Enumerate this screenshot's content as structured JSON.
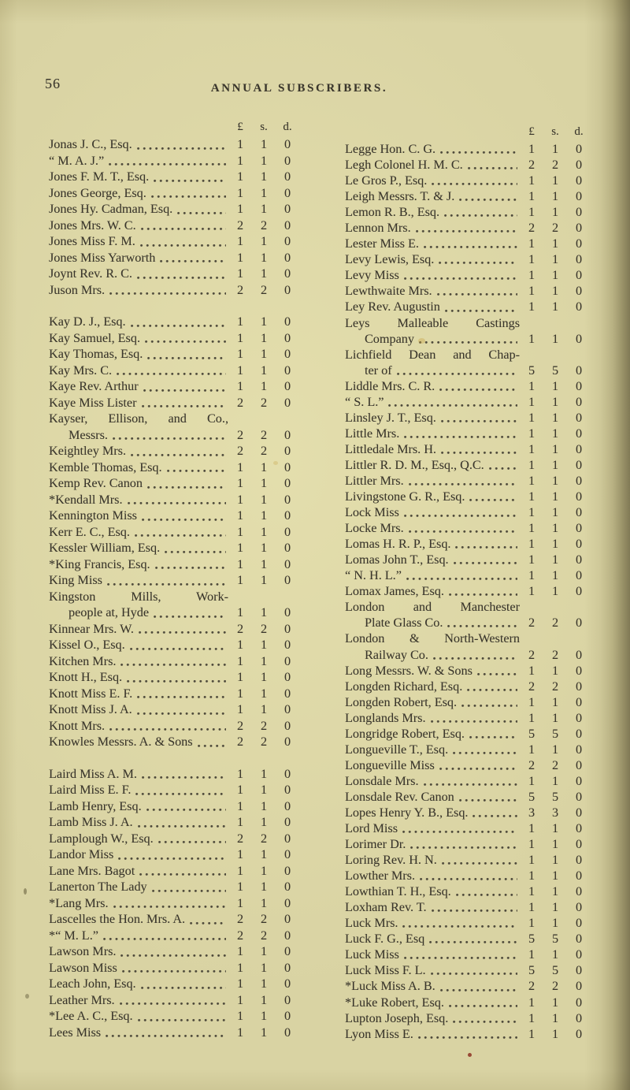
{
  "page": {
    "number": "56",
    "title": "ANNUAL SUBSCRIBERS.",
    "currency_header": {
      "pounds": "£",
      "shillings": "s.",
      "pence": "d."
    }
  },
  "columns": [
    {
      "side": "left",
      "groups": [
        {
          "entries": [
            {
              "name": "Jonas J. C., Esq.",
              "v": [
                "1",
                "1",
                "0"
              ]
            },
            {
              "name": "“ M. A. J.”",
              "v": [
                "1",
                "1",
                "0"
              ]
            },
            {
              "name": "Jones F. M. T., Esq.",
              "v": [
                "1",
                "1",
                "0"
              ]
            },
            {
              "name": "Jones George, Esq.",
              "v": [
                "1",
                "1",
                "0"
              ]
            },
            {
              "name": "Jones Hy. Cadman, Esq.",
              "v": [
                "1",
                "1",
                "0"
              ]
            },
            {
              "name": "Jones Mrs. W. C.",
              "v": [
                "2",
                "2",
                "0"
              ]
            },
            {
              "name": "Jones Miss F. M.",
              "v": [
                "1",
                "1",
                "0"
              ]
            },
            {
              "name": "Jones Miss Yarworth",
              "v": [
                "1",
                "1",
                "0"
              ]
            },
            {
              "name": "Joynt Rev. R. C.",
              "v": [
                "1",
                "1",
                "0"
              ]
            },
            {
              "name": "Juson Mrs.",
              "v": [
                "2",
                "2",
                "0"
              ]
            }
          ]
        },
        {
          "entries": [
            {
              "name": "Kay D. J., Esq.",
              "v": [
                "1",
                "1",
                "0"
              ]
            },
            {
              "name": "Kay Samuel, Esq.",
              "v": [
                "1",
                "1",
                "0"
              ]
            },
            {
              "name": "Kay Thomas, Esq.",
              "v": [
                "1",
                "1",
                "0"
              ]
            },
            {
              "name": "Kay Mrs. C.",
              "v": [
                "1",
                "1",
                "0"
              ]
            },
            {
              "name": "Kaye Rev. Arthur",
              "v": [
                "1",
                "1",
                "0"
              ]
            },
            {
              "name": "Kaye Miss Lister",
              "v": [
                "2",
                "2",
                "0"
              ]
            },
            {
              "line1": "Kayser, Ellison, and Co.,",
              "line2": "Messrs.",
              "v": [
                "2",
                "2",
                "0"
              ]
            },
            {
              "name": "Keightley Mrs.",
              "v": [
                "2",
                "2",
                "0"
              ]
            },
            {
              "name": "Kemble Thomas, Esq.",
              "v": [
                "1",
                "1",
                "0"
              ]
            },
            {
              "name": "Kemp Rev. Canon",
              "v": [
                "1",
                "1",
                "0"
              ]
            },
            {
              "name": "*Kendall Mrs.",
              "v": [
                "1",
                "1",
                "0"
              ]
            },
            {
              "name": "Kennington Miss",
              "v": [
                "1",
                "1",
                "0"
              ]
            },
            {
              "name": "Kerr E. C., Esq.",
              "v": [
                "1",
                "1",
                "0"
              ]
            },
            {
              "name": "Kessler William, Esq.",
              "v": [
                "1",
                "1",
                "0"
              ]
            },
            {
              "name": "*King Francis, Esq.",
              "v": [
                "1",
                "1",
                "0"
              ]
            },
            {
              "name": "King Miss",
              "v": [
                "1",
                "1",
                "0"
              ]
            },
            {
              "line1": "Kingston Mills, Work-",
              "line2": "people at, Hyde",
              "v": [
                "1",
                "1",
                "0"
              ]
            },
            {
              "name": "Kinnear Mrs. W.",
              "v": [
                "2",
                "2",
                "0"
              ]
            },
            {
              "name": "Kissel O., Esq.",
              "v": [
                "1",
                "1",
                "0"
              ]
            },
            {
              "name": "Kitchen Mrs.",
              "v": [
                "1",
                "1",
                "0"
              ]
            },
            {
              "name": "Knott H., Esq.",
              "v": [
                "1",
                "1",
                "0"
              ]
            },
            {
              "name": "Knott Miss E. F.",
              "v": [
                "1",
                "1",
                "0"
              ]
            },
            {
              "name": "Knott Miss J. A.",
              "v": [
                "1",
                "1",
                "0"
              ]
            },
            {
              "name": "Knott Mrs.",
              "v": [
                "2",
                "2",
                "0"
              ]
            },
            {
              "name": "Knowles Messrs. A. & Sons",
              "v": [
                "2",
                "2",
                "0"
              ]
            }
          ]
        },
        {
          "entries": [
            {
              "name": "Laird Miss A. M.",
              "v": [
                "1",
                "1",
                "0"
              ]
            },
            {
              "name": "Laird Miss E. F.",
              "v": [
                "1",
                "1",
                "0"
              ]
            },
            {
              "name": "Lamb Henry, Esq.",
              "v": [
                "1",
                "1",
                "0"
              ]
            },
            {
              "name": "Lamb Miss J. A.",
              "v": [
                "1",
                "1",
                "0"
              ]
            },
            {
              "name": "Lamplough W., Esq.",
              "v": [
                "2",
                "2",
                "0"
              ]
            },
            {
              "name": "Landor Miss",
              "v": [
                "1",
                "1",
                "0"
              ]
            },
            {
              "name": "Lane Mrs. Bagot",
              "v": [
                "1",
                "1",
                "0"
              ]
            },
            {
              "name": "Lanerton The Lady",
              "v": [
                "1",
                "1",
                "0"
              ]
            },
            {
              "name": "*Lang Mrs.",
              "v": [
                "1",
                "1",
                "0"
              ]
            },
            {
              "name": "Lascelles the Hon. Mrs. A.",
              "v": [
                "2",
                "2",
                "0"
              ]
            },
            {
              "name": "*“ M. L.”",
              "v": [
                "2",
                "2",
                "0"
              ]
            },
            {
              "name": "Lawson Mrs.",
              "v": [
                "1",
                "1",
                "0"
              ]
            },
            {
              "name": "Lawson Miss",
              "v": [
                "1",
                "1",
                "0"
              ]
            },
            {
              "name": "Leach John, Esq.",
              "v": [
                "1",
                "1",
                "0"
              ]
            },
            {
              "name": "Leather Mrs.",
              "v": [
                "1",
                "1",
                "0"
              ]
            },
            {
              "name": "*Lee A. C., Esq.",
              "v": [
                "1",
                "1",
                "0"
              ]
            },
            {
              "name": "Lees Miss",
              "v": [
                "1",
                "1",
                "0"
              ]
            }
          ]
        }
      ]
    },
    {
      "side": "right",
      "groups": [
        {
          "entries": [
            {
              "name": "Legge Hon. C. G.",
              "v": [
                "1",
                "1",
                "0"
              ]
            },
            {
              "name": "Legh Colonel H. M. C.",
              "v": [
                "2",
                "2",
                "0"
              ]
            },
            {
              "name": "Le Gros P., Esq.",
              "v": [
                "1",
                "1",
                "0"
              ]
            },
            {
              "name": "Leigh Messrs. T. & J.",
              "v": [
                "1",
                "1",
                "0"
              ]
            },
            {
              "name": "Lemon R. B., Esq.",
              "v": [
                "1",
                "1",
                "0"
              ]
            },
            {
              "name": "Lennon Mrs.",
              "v": [
                "2",
                "2",
                "0"
              ]
            },
            {
              "name": "Lester Miss E.",
              "v": [
                "1",
                "1",
                "0"
              ]
            },
            {
              "name": "Levy Lewis, Esq.",
              "v": [
                "1",
                "1",
                "0"
              ]
            },
            {
              "name": "Levy Miss",
              "v": [
                "1",
                "1",
                "0"
              ]
            },
            {
              "name": "Lewthwaite Mrs.",
              "v": [
                "1",
                "1",
                "0"
              ]
            },
            {
              "name": "Ley Rev. Augustin",
              "v": [
                "1",
                "1",
                "0"
              ]
            },
            {
              "line1": "Leys Malleable Castings",
              "line2": "Company",
              "v": [
                "1",
                "1",
                "0"
              ]
            },
            {
              "line1": "Lichfield Dean and Chap-",
              "line2": "ter of",
              "v": [
                "5",
                "5",
                "0"
              ]
            },
            {
              "name": "Liddle Mrs. C. R.",
              "v": [
                "1",
                "1",
                "0"
              ]
            },
            {
              "name": "“ S. L.”",
              "v": [
                "1",
                "1",
                "0"
              ]
            },
            {
              "name": "Linsley J. T., Esq.",
              "v": [
                "1",
                "1",
                "0"
              ]
            },
            {
              "name": "Little Mrs.",
              "v": [
                "1",
                "1",
                "0"
              ]
            },
            {
              "name": "Littledale Mrs. H.",
              "v": [
                "1",
                "1",
                "0"
              ]
            },
            {
              "name": "Littler R. D. M., Esq., Q.C.",
              "v": [
                "1",
                "1",
                "0"
              ]
            },
            {
              "name": "Littler Mrs.",
              "v": [
                "1",
                "1",
                "0"
              ]
            },
            {
              "name": "Livingstone G. R., Esq.",
              "v": [
                "1",
                "1",
                "0"
              ]
            },
            {
              "name": "Lock Miss",
              "v": [
                "1",
                "1",
                "0"
              ]
            },
            {
              "name": "Locke Mrs.",
              "v": [
                "1",
                "1",
                "0"
              ]
            },
            {
              "name": "Lomas H. R. P., Esq.",
              "v": [
                "1",
                "1",
                "0"
              ]
            },
            {
              "name": "Lomas John T., Esq.",
              "v": [
                "1",
                "1",
                "0"
              ]
            },
            {
              "name": "“ N. H. L.”",
              "v": [
                "1",
                "1",
                "0"
              ]
            },
            {
              "name": "Lomax James, Esq.",
              "v": [
                "1",
                "1",
                "0"
              ]
            },
            {
              "line1": "London and Manchester",
              "line2": "Plate Glass Co.",
              "v": [
                "2",
                "2",
                "0"
              ]
            },
            {
              "line1": "London & North-Western",
              "line2": "Railway Co.",
              "v": [
                "2",
                "2",
                "0"
              ]
            },
            {
              "name": "Long Messrs. W. & Sons",
              "v": [
                "1",
                "1",
                "0"
              ]
            },
            {
              "name": "Longden Richard, Esq.",
              "v": [
                "2",
                "2",
                "0"
              ]
            },
            {
              "name": "Longden Robert, Esq.",
              "v": [
                "1",
                "1",
                "0"
              ]
            },
            {
              "name": "Longlands Mrs.",
              "v": [
                "1",
                "1",
                "0"
              ]
            },
            {
              "name": "Longridge Robert, Esq.",
              "v": [
                "5",
                "5",
                "0"
              ]
            },
            {
              "name": "Longueville T., Esq.",
              "v": [
                "1",
                "1",
                "0"
              ]
            },
            {
              "name": "Longueville Miss",
              "v": [
                "2",
                "2",
                "0"
              ]
            },
            {
              "name": "Lonsdale Mrs.",
              "v": [
                "1",
                "1",
                "0"
              ]
            },
            {
              "name": "Lonsdale Rev. Canon",
              "v": [
                "5",
                "5",
                "0"
              ]
            },
            {
              "name": "Lopes Henry Y. B., Esq.",
              "v": [
                "3",
                "3",
                "0"
              ]
            },
            {
              "name": "Lord Miss",
              "v": [
                "1",
                "1",
                "0"
              ]
            },
            {
              "name": "Lorimer Dr.",
              "v": [
                "1",
                "1",
                "0"
              ]
            },
            {
              "name": "Loring Rev. H. N.",
              "v": [
                "1",
                "1",
                "0"
              ]
            },
            {
              "name": "Lowther Mrs.",
              "v": [
                "1",
                "1",
                "0"
              ]
            },
            {
              "name": "Lowthian T. H., Esq.",
              "v": [
                "1",
                "1",
                "0"
              ]
            },
            {
              "name": "Loxham Rev. T.",
              "v": [
                "1",
                "1",
                "0"
              ]
            },
            {
              "name": "Luck Mrs.",
              "v": [
                "1",
                "1",
                "0"
              ]
            },
            {
              "name": "Luck F. G., Esq",
              "v": [
                "5",
                "5",
                "0"
              ]
            },
            {
              "name": "Luck Miss",
              "v": [
                "1",
                "1",
                "0"
              ]
            },
            {
              "name": "Luck Miss F. L.",
              "v": [
                "5",
                "5",
                "0"
              ]
            },
            {
              "name": "*Luck Miss A. B.",
              "v": [
                "2",
                "2",
                "0"
              ]
            },
            {
              "name": "*Luke Robert, Esq.",
              "v": [
                "1",
                "1",
                "0"
              ]
            },
            {
              "name": "Lupton Joseph, Esq.",
              "v": [
                "1",
                "1",
                "0"
              ]
            },
            {
              "name": "Lyon Miss E.",
              "v": [
                "1",
                "1",
                "0"
              ]
            }
          ]
        }
      ]
    }
  ]
}
